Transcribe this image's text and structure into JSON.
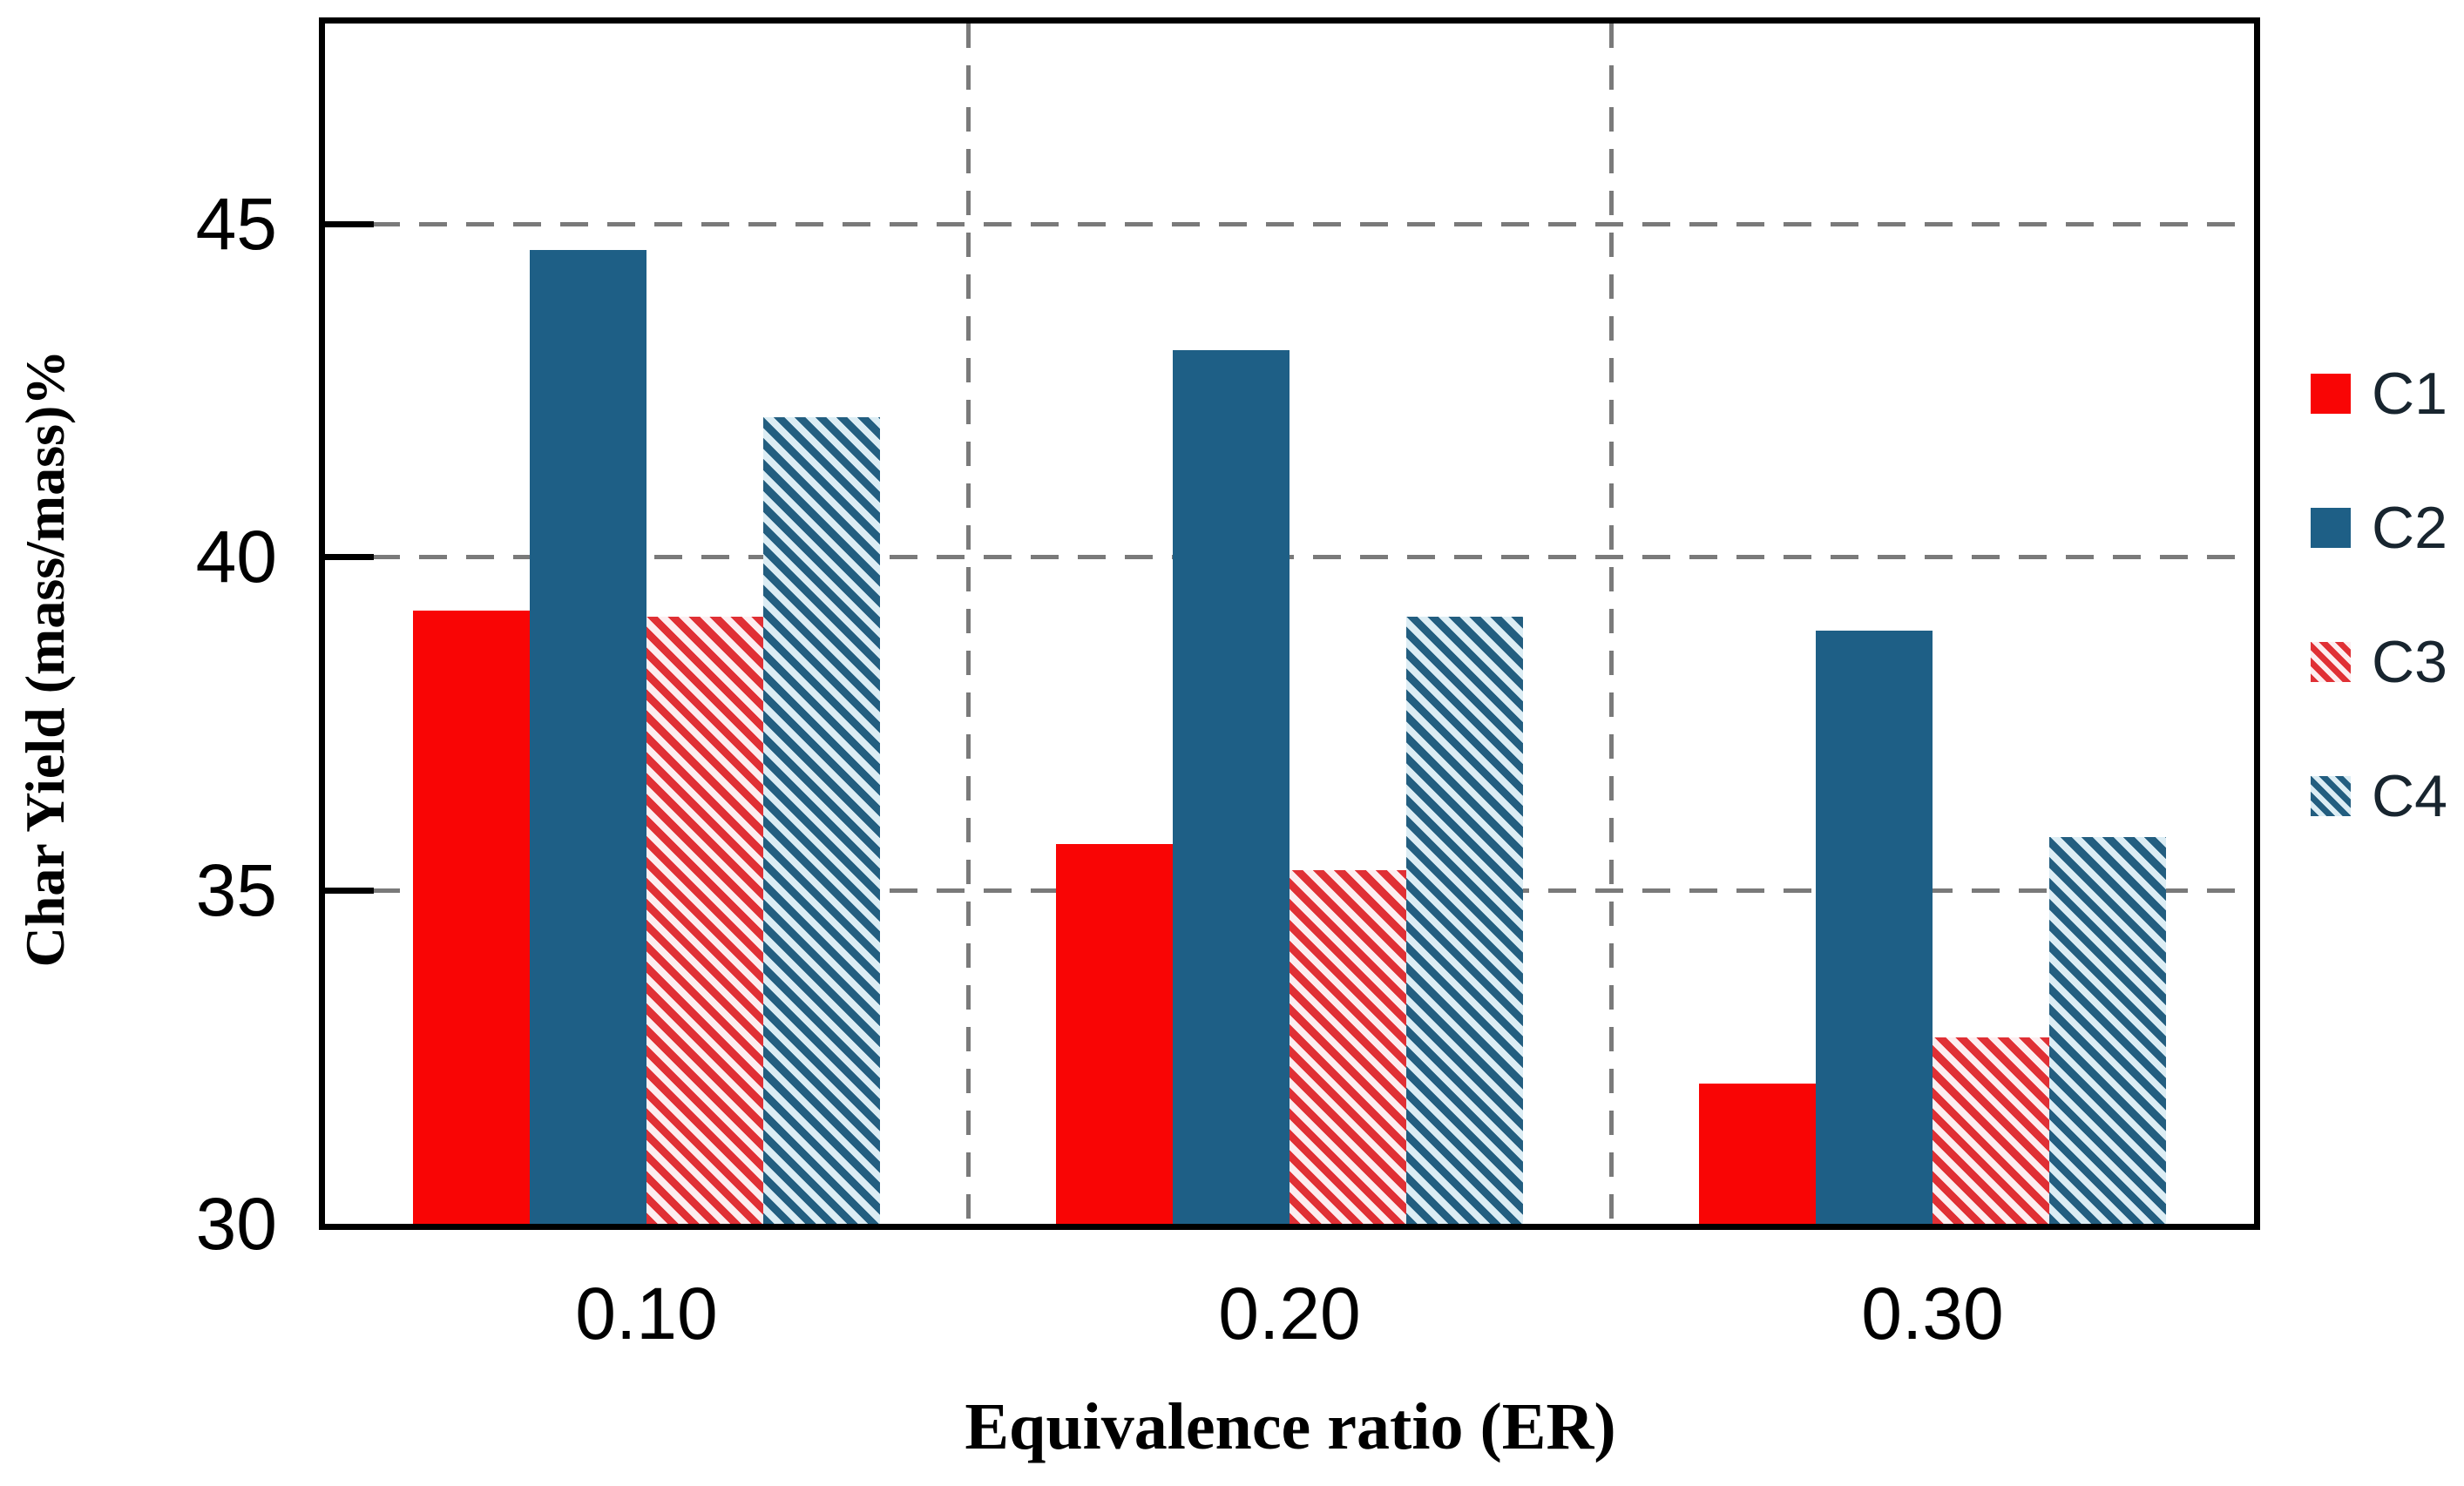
{
  "chart_data": {
    "type": "bar",
    "title": "",
    "categories": [
      "0.10",
      "0.20",
      "0.30"
    ],
    "series": [
      {
        "name": "C1",
        "style": "solid",
        "color": "#f90505",
        "bg": "#f90505",
        "values": [
          39.2,
          35.7,
          32.1
        ]
      },
      {
        "name": "C2",
        "style": "solid",
        "color": "#1e5f86",
        "bg": "#1e5f86",
        "values": [
          44.6,
          43.1,
          38.9
        ]
      },
      {
        "name": "C3",
        "style": "hatch",
        "color": "#e03035",
        "bg": "#fdeef0",
        "values": [
          39.1,
          35.3,
          32.8
        ]
      },
      {
        "name": "C4",
        "style": "hatch",
        "color": "#235e80",
        "bg": "#dcedf4",
        "values": [
          42.1,
          39.1,
          35.8
        ]
      }
    ],
    "xlabel": "Equivalence ratio (ER)",
    "ylabel": "Char Yield (mass/mass)%",
    "ylim": [
      30,
      48
    ],
    "yticks": [
      30,
      35,
      40,
      45
    ],
    "grid": {
      "horizontal": [
        35,
        40,
        45
      ],
      "vertical_at_category_boundaries": true,
      "style": "dashed"
    },
    "legend": {
      "position": "right",
      "entries": [
        "C1",
        "C2",
        "C3",
        "C4"
      ]
    }
  },
  "colors": {
    "frame": "#000000",
    "gridline": "#7a7a7a",
    "tick_text": "#000000",
    "legend_text": "#18252f",
    "background": "#ffffff"
  }
}
